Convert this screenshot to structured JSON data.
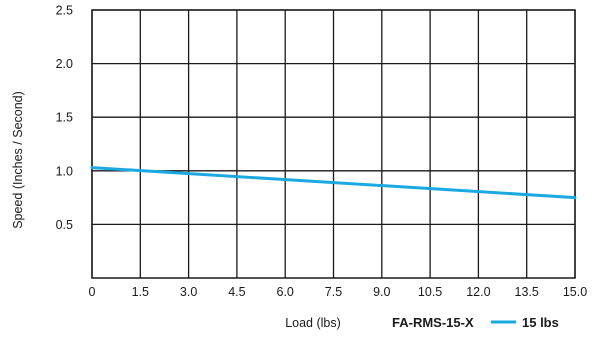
{
  "chart_data": {
    "type": "line",
    "title": "",
    "xlabel": "Load (lbs)",
    "ylabel": "Speed (Inches / Second)",
    "xlim": [
      0,
      15
    ],
    "ylim": [
      0,
      2.5
    ],
    "x_ticks": [
      "0",
      "1.5",
      "3.0",
      "4.5",
      "6.0",
      "7.5",
      "9.0",
      "10.5",
      "12.0",
      "13.5",
      "15.0"
    ],
    "x_tick_values": [
      0,
      1.5,
      3,
      4.5,
      6,
      7.5,
      9,
      10.5,
      12,
      13.5,
      15
    ],
    "y_ticks": [
      "0.5",
      "1.0",
      "1.5",
      "2.0",
      "2.5"
    ],
    "y_tick_values": [
      0.5,
      1.0,
      1.5,
      2.0,
      2.5
    ],
    "grid": true,
    "legend_placement": "bottom-right",
    "legend_model": "FA-RMS-15-X",
    "series": [
      {
        "name": "15 lbs",
        "color": "#1ba9e1",
        "x": [
          0,
          15
        ],
        "y": [
          1.03,
          0.75
        ]
      }
    ]
  }
}
